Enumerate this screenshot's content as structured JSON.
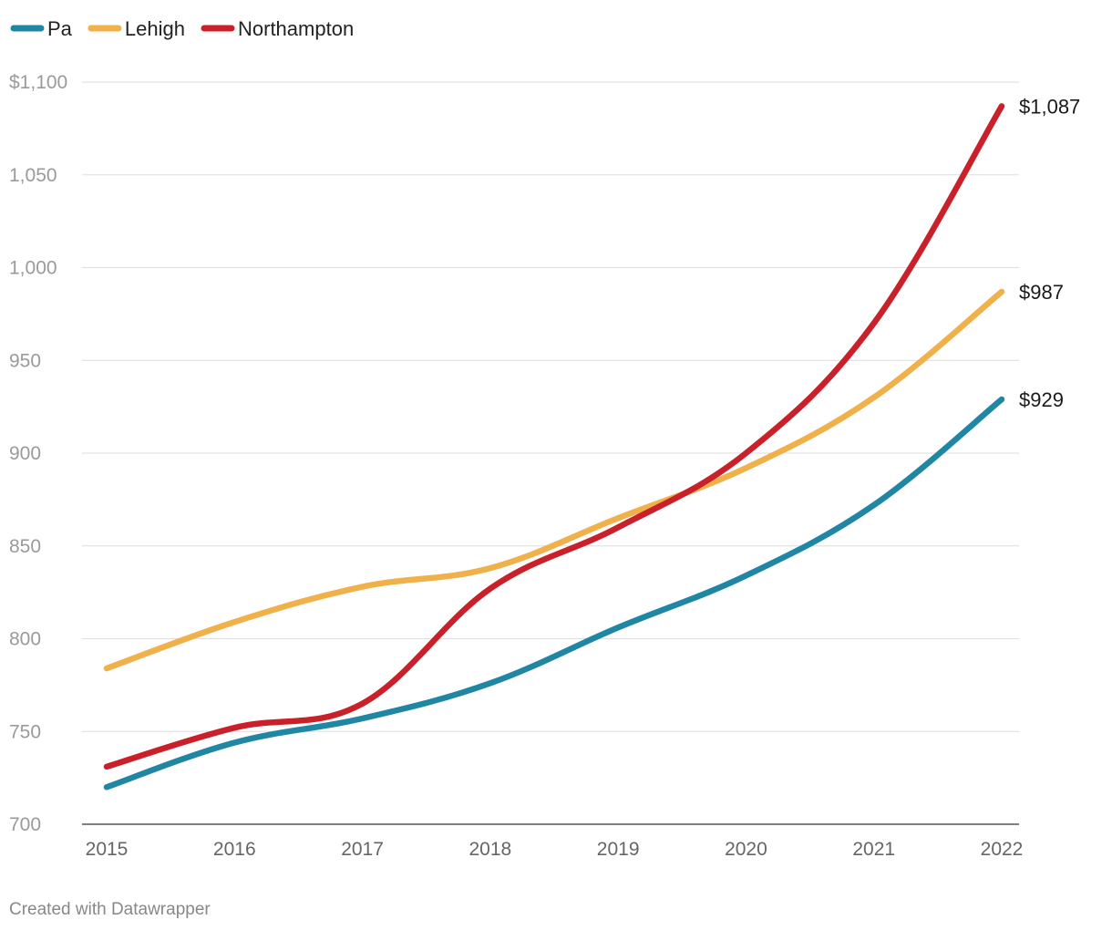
{
  "chart_data": {
    "type": "line",
    "x": [
      2015,
      2016,
      2017,
      2018,
      2019,
      2020,
      2021,
      2022
    ],
    "series": [
      {
        "name": "Pa",
        "color": "#1f86a4",
        "values": [
          720,
          744,
          757,
          776,
          806,
          834,
          872,
          929
        ],
        "end_label": "$929"
      },
      {
        "name": "Lehigh",
        "color": "#f0b04a",
        "values": [
          784,
          809,
          828,
          838,
          865,
          892,
          930,
          987
        ],
        "end_label": "$987"
      },
      {
        "name": "Northampton",
        "color": "#c9202a",
        "values": [
          731,
          752,
          765,
          827,
          860,
          900,
          970,
          1087
        ],
        "end_label": "$1,087"
      }
    ],
    "ylim": [
      700,
      1100
    ],
    "yticks": [
      700,
      750,
      800,
      850,
      900,
      950,
      1000,
      1050,
      1100
    ],
    "ytick_labels": [
      "700",
      "750",
      "800",
      "850",
      "900",
      "950",
      "1,000",
      "1,050",
      "$1,100"
    ],
    "xtick_labels": [
      "2015",
      "2016",
      "2017",
      "2018",
      "2019",
      "2020",
      "2021",
      "2022"
    ],
    "grid": true,
    "legend": "top-left"
  },
  "footer": "Created with Datawrapper"
}
